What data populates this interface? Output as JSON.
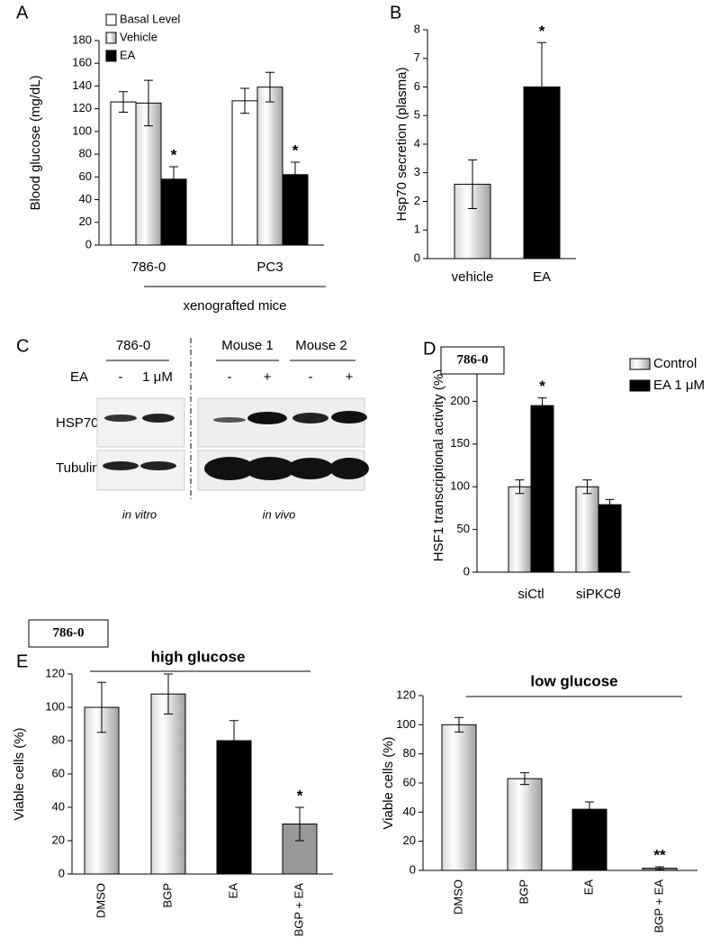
{
  "chart_data": [
    {
      "type": "bar",
      "panel": "A",
      "ylabel": "Blood glucose (mg/dL)",
      "xlabel": "xenografted mice",
      "categories": [
        "786-0",
        "PC3"
      ],
      "series": [
        {
          "name": "Basal Level",
          "color": "#ffffff",
          "gradient": false,
          "values": [
            126,
            127
          ],
          "errors": [
            9,
            11
          ]
        },
        {
          "name": "Vehicle",
          "color": "#a0a0a0",
          "gradient": true,
          "values": [
            125,
            139
          ],
          "errors": [
            20,
            13
          ]
        },
        {
          "name": "EA",
          "color": "#000000",
          "gradient": false,
          "values": [
            58,
            62
          ],
          "errors": [
            11,
            11
          ],
          "annotations": [
            "*",
            "*"
          ]
        }
      ],
      "ylim": [
        0,
        180
      ],
      "yticks": [
        0,
        20,
        40,
        60,
        80,
        100,
        120,
        140,
        160,
        180
      ]
    },
    {
      "type": "bar",
      "panel": "B",
      "ylabel": "Hsp70 secretion (plasma)",
      "categories": [
        "vehicle",
        "EA"
      ],
      "values": [
        2.6,
        6.0
      ],
      "errors": [
        0.85,
        1.55
      ],
      "colors": [
        "#a0a0a0",
        "#000000"
      ],
      "gradients": [
        true,
        false
      ],
      "annotations": [
        null,
        "*"
      ],
      "ylim": [
        0,
        8
      ],
      "yticks": [
        0,
        1,
        2,
        3,
        4,
        5,
        6,
        7,
        8
      ]
    },
    {
      "type": "bar",
      "panel": "D",
      "box": "786-0",
      "ylabel": "HSF1 transcriptional activity (%)",
      "categories": [
        "siCtl",
        "siPKCθ"
      ],
      "series": [
        {
          "name": "Control",
          "color": "#a0a0a0",
          "gradient": true,
          "values": [
            100,
            100
          ],
          "errors": [
            8,
            8
          ]
        },
        {
          "name": "EA 1 μM",
          "color": "#000000",
          "gradient": false,
          "values": [
            195,
            79
          ],
          "errors": [
            9,
            6
          ],
          "annotations": [
            "*",
            null
          ]
        }
      ],
      "ylim": [
        0,
        250
      ],
      "yticks": [
        0,
        50,
        100,
        150,
        200,
        250
      ]
    },
    {
      "type": "bar",
      "panel": "E",
      "box": "786-0",
      "title": "high glucose",
      "ylabel": "Viable cells (%)",
      "categories": [
        "DMSO",
        "BGP",
        "EA",
        "BGP + EA"
      ],
      "values": [
        100,
        108,
        80,
        30
      ],
      "errors": [
        15,
        12,
        12,
        10
      ],
      "colors": [
        "#a0a0a0",
        "#a0a0a0",
        "#000000",
        "#999999"
      ],
      "gradients": [
        true,
        true,
        false,
        false
      ],
      "annotations": [
        null,
        null,
        null,
        "*"
      ],
      "ylim": [
        0,
        120
      ],
      "yticks": [
        0,
        20,
        40,
        60,
        80,
        100,
        120
      ]
    },
    {
      "type": "bar",
      "title": "low glucose",
      "ylabel": "Viable cells  (%)",
      "categories": [
        "DMSO",
        "BGP",
        "EA",
        "BGP + EA"
      ],
      "values": [
        100,
        63,
        42,
        1.5
      ],
      "errors": [
        5,
        4,
        5,
        1
      ],
      "colors": [
        "#a0a0a0",
        "#a0a0a0",
        "#000000",
        "#999999"
      ],
      "gradients": [
        true,
        true,
        false,
        false
      ],
      "annotations": [
        null,
        null,
        null,
        "**"
      ],
      "ylim": [
        0,
        120
      ],
      "yticks": [
        0,
        20,
        40,
        60,
        80,
        100,
        120
      ]
    }
  ],
  "blot": {
    "label": "C",
    "cell_header": "786-0",
    "mouse_headers": [
      "Mouse 1",
      "Mouse 2"
    ],
    "treatment": "EA",
    "lanes": [
      "-",
      "1 μM",
      "-",
      "+",
      "-",
      "+"
    ],
    "rows": [
      "HSP70",
      "Tubulin"
    ],
    "footers": [
      "in vitro",
      "in vivo"
    ]
  }
}
